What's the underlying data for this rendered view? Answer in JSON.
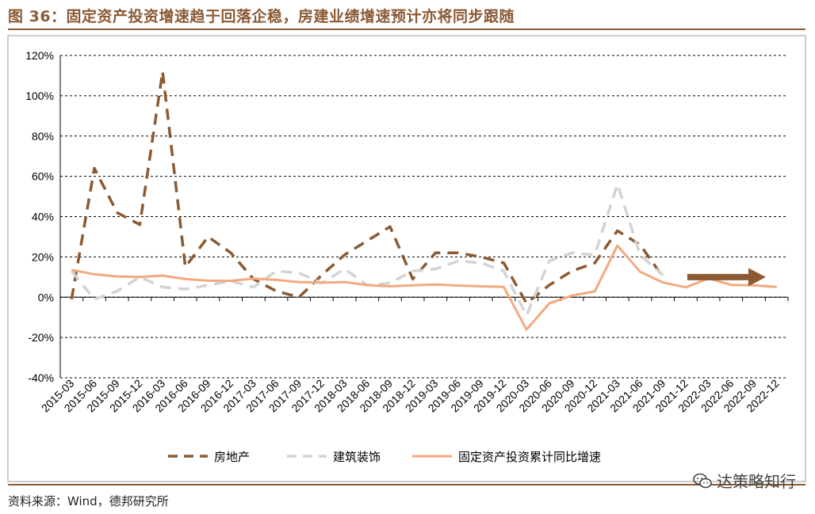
{
  "title": "图 36：固定资产投资增速趋于回落企稳，房建业绩增速预计亦将同步跟随",
  "source": "资料来源：Wind，德邦研究所",
  "watermark": "达策略知行",
  "colors": {
    "accent": "#8a5a35",
    "real_estate": "#8b5a32",
    "construction": "#d3d3d3",
    "fixed_asset": "#f2a97e",
    "arrow": "#8b5a32"
  },
  "chart_data": {
    "type": "line",
    "ylim": [
      -40,
      120
    ],
    "yticks": [
      -40,
      -20,
      0,
      20,
      40,
      60,
      80,
      100,
      120
    ],
    "ytick_labels": [
      "-40%",
      "-20%",
      "0%",
      "20%",
      "40%",
      "60%",
      "80%",
      "100%",
      "120%"
    ],
    "categories": [
      "2015-03",
      "2015-06",
      "2015-09",
      "2015-12",
      "2016-03",
      "2016-06",
      "2016-09",
      "2016-12",
      "2017-03",
      "2017-06",
      "2017-09",
      "2017-12",
      "2018-03",
      "2018-06",
      "2018-09",
      "2018-12",
      "2019-03",
      "2019-06",
      "2019-09",
      "2019-12",
      "2020-03",
      "2020-06",
      "2020-09",
      "2020-12",
      "2021-03",
      "2021-06",
      "2021-09",
      "2021-12",
      "2022-03",
      "2022-06",
      "2022-09",
      "2022-12"
    ],
    "series": [
      {
        "name": "房地产",
        "style": "dashed",
        "values": [
          -1,
          64,
          42,
          36,
          112,
          15,
          30,
          22,
          9,
          3,
          0,
          11,
          21,
          28,
          35,
          9,
          22,
          22,
          20,
          17,
          -3,
          6,
          13,
          17,
          33,
          26,
          10,
          null,
          null,
          null,
          null,
          null
        ]
      },
      {
        "name": "建筑装饰",
        "style": "dashed",
        "values": [
          13,
          -1,
          3,
          10,
          5,
          4,
          6,
          8,
          5,
          13,
          12,
          7,
          14,
          6,
          7,
          13,
          14,
          18,
          17,
          13,
          -9,
          18,
          22,
          21,
          56,
          21,
          11,
          null,
          null,
          null,
          null,
          null
        ]
      },
      {
        "name": "固定资产投资累计同比增速",
        "style": "solid",
        "values": [
          13.5,
          11.4,
          10.3,
          10.0,
          10.7,
          9.0,
          8.2,
          8.1,
          9.2,
          8.6,
          7.5,
          7.2,
          7.5,
          6.0,
          5.4,
          5.9,
          6.3,
          5.8,
          5.4,
          5.1,
          -16.1,
          -3.1,
          0.8,
          2.9,
          25.6,
          12.6,
          7.3,
          4.9,
          9.3,
          6.1,
          5.9,
          5.1
        ]
      }
    ],
    "arrow": {
      "from": "2021-12",
      "to": "2022-09",
      "value": 10
    },
    "legend_position": "bottom"
  }
}
